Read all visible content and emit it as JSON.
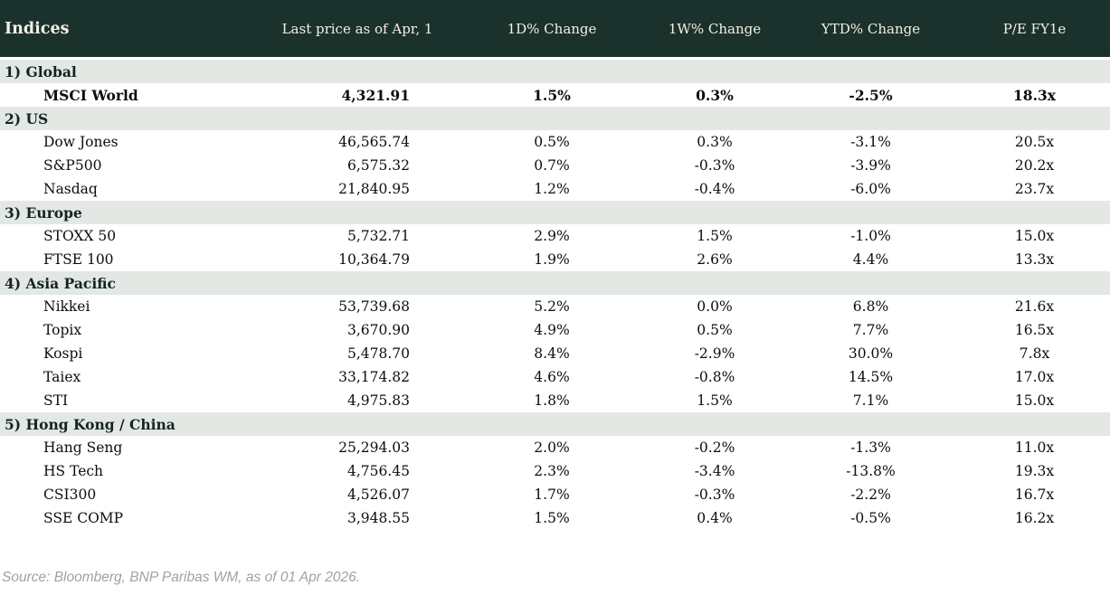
{
  "colors": {
    "header_bg": "#1b322c",
    "header_text": "#f4efe4",
    "section_bg": "#e3e8e4",
    "up": "#128a28",
    "down": "#c11430"
  },
  "table": {
    "columns": [
      "Indices",
      "Last price as of Apr, 1",
      "1D% Change",
      "1W% Change",
      "YTD% Change",
      "P/E FY1e"
    ],
    "sections": [
      {
        "label": "1) Global",
        "rows": [
          {
            "name": "MSCI World",
            "price": "4,321.91",
            "d1": "1.5%",
            "d1_dir": "up",
            "w1": "0.3%",
            "w1_dir": "up",
            "ytd": "-2.5%",
            "ytd_dir": "down",
            "pe": "18.3x",
            "bold": true
          }
        ]
      },
      {
        "label": "2) US",
        "rows": [
          {
            "name": "Dow Jones",
            "price": "46,565.74",
            "d1": "0.5%",
            "d1_dir": "up",
            "w1": "0.3%",
            "w1_dir": "up",
            "ytd": "-3.1%",
            "ytd_dir": "down",
            "pe": "20.5x",
            "bold": false
          },
          {
            "name": "S&P500",
            "price": "6,575.32",
            "d1": "0.7%",
            "d1_dir": "up",
            "w1": "-0.3%",
            "w1_dir": "down",
            "ytd": "-3.9%",
            "ytd_dir": "down",
            "pe": "20.2x",
            "bold": false
          },
          {
            "name": "Nasdaq",
            "price": "21,840.95",
            "d1": "1.2%",
            "d1_dir": "up",
            "w1": "-0.4%",
            "w1_dir": "down",
            "ytd": "-6.0%",
            "ytd_dir": "down",
            "pe": "23.7x",
            "bold": false
          }
        ]
      },
      {
        "label": "3) Europe",
        "rows": [
          {
            "name": "STOXX 50",
            "price": "5,732.71",
            "d1": "2.9%",
            "d1_dir": "up",
            "w1": "1.5%",
            "w1_dir": "up",
            "ytd": "-1.0%",
            "ytd_dir": "down",
            "pe": "15.0x",
            "bold": false
          },
          {
            "name": "FTSE 100",
            "price": "10,364.79",
            "d1": "1.9%",
            "d1_dir": "up",
            "w1": "2.6%",
            "w1_dir": "up",
            "ytd": "4.4%",
            "ytd_dir": "up",
            "pe": "13.3x",
            "bold": false
          }
        ]
      },
      {
        "label": "4) Asia Pacific",
        "rows": [
          {
            "name": "Nikkei",
            "price": "53,739.68",
            "d1": "5.2%",
            "d1_dir": "up",
            "w1": "0.0%",
            "w1_dir": "down",
            "ytd": "6.8%",
            "ytd_dir": "up",
            "pe": "21.6x",
            "bold": false
          },
          {
            "name": "Topix",
            "price": "3,670.90",
            "d1": "4.9%",
            "d1_dir": "up",
            "w1": "0.5%",
            "w1_dir": "up",
            "ytd": "7.7%",
            "ytd_dir": "up",
            "pe": "16.5x",
            "bold": false
          },
          {
            "name": "Kospi",
            "price": "5,478.70",
            "d1": "8.4%",
            "d1_dir": "up",
            "w1": "-2.9%",
            "w1_dir": "down",
            "ytd": "30.0%",
            "ytd_dir": "up",
            "pe": "7.8x",
            "bold": false
          },
          {
            "name": "Taiex",
            "price": "33,174.82",
            "d1": "4.6%",
            "d1_dir": "up",
            "w1": "-0.8%",
            "w1_dir": "down",
            "ytd": "14.5%",
            "ytd_dir": "up",
            "pe": "17.0x",
            "bold": false
          },
          {
            "name": "STI",
            "price": "4,975.83",
            "d1": "1.8%",
            "d1_dir": "up",
            "w1": "1.5%",
            "w1_dir": "up",
            "ytd": "7.1%",
            "ytd_dir": "up",
            "pe": "15.0x",
            "bold": false
          }
        ]
      },
      {
        "label": "5) Hong Kong / China",
        "rows": [
          {
            "name": "Hang Seng",
            "price": "25,294.03",
            "d1": "2.0%",
            "d1_dir": "up",
            "w1": "-0.2%",
            "w1_dir": "down",
            "ytd": "-1.3%",
            "ytd_dir": "down",
            "pe": "11.0x",
            "bold": false
          },
          {
            "name": "HS Tech",
            "price": "4,756.45",
            "d1": "2.3%",
            "d1_dir": "up",
            "w1": "-3.4%",
            "w1_dir": "down",
            "ytd": "-13.8%",
            "ytd_dir": "down",
            "pe": "19.3x",
            "bold": false
          },
          {
            "name": "CSI300",
            "price": "4,526.07",
            "d1": "1.7%",
            "d1_dir": "up",
            "w1": "-0.3%",
            "w1_dir": "down",
            "ytd": "-2.2%",
            "ytd_dir": "down",
            "pe": "16.7x",
            "bold": false
          },
          {
            "name": "SSE COMP",
            "price": "3,948.55",
            "d1": "1.5%",
            "d1_dir": "up",
            "w1": "0.4%",
            "w1_dir": "up",
            "ytd": "-0.5%",
            "ytd_dir": "down",
            "pe": "16.2x",
            "bold": false
          }
        ]
      }
    ]
  },
  "footer": {
    "source": "Source: Bloomberg, BNP Paribas WM, as of 01 Apr 2026."
  }
}
